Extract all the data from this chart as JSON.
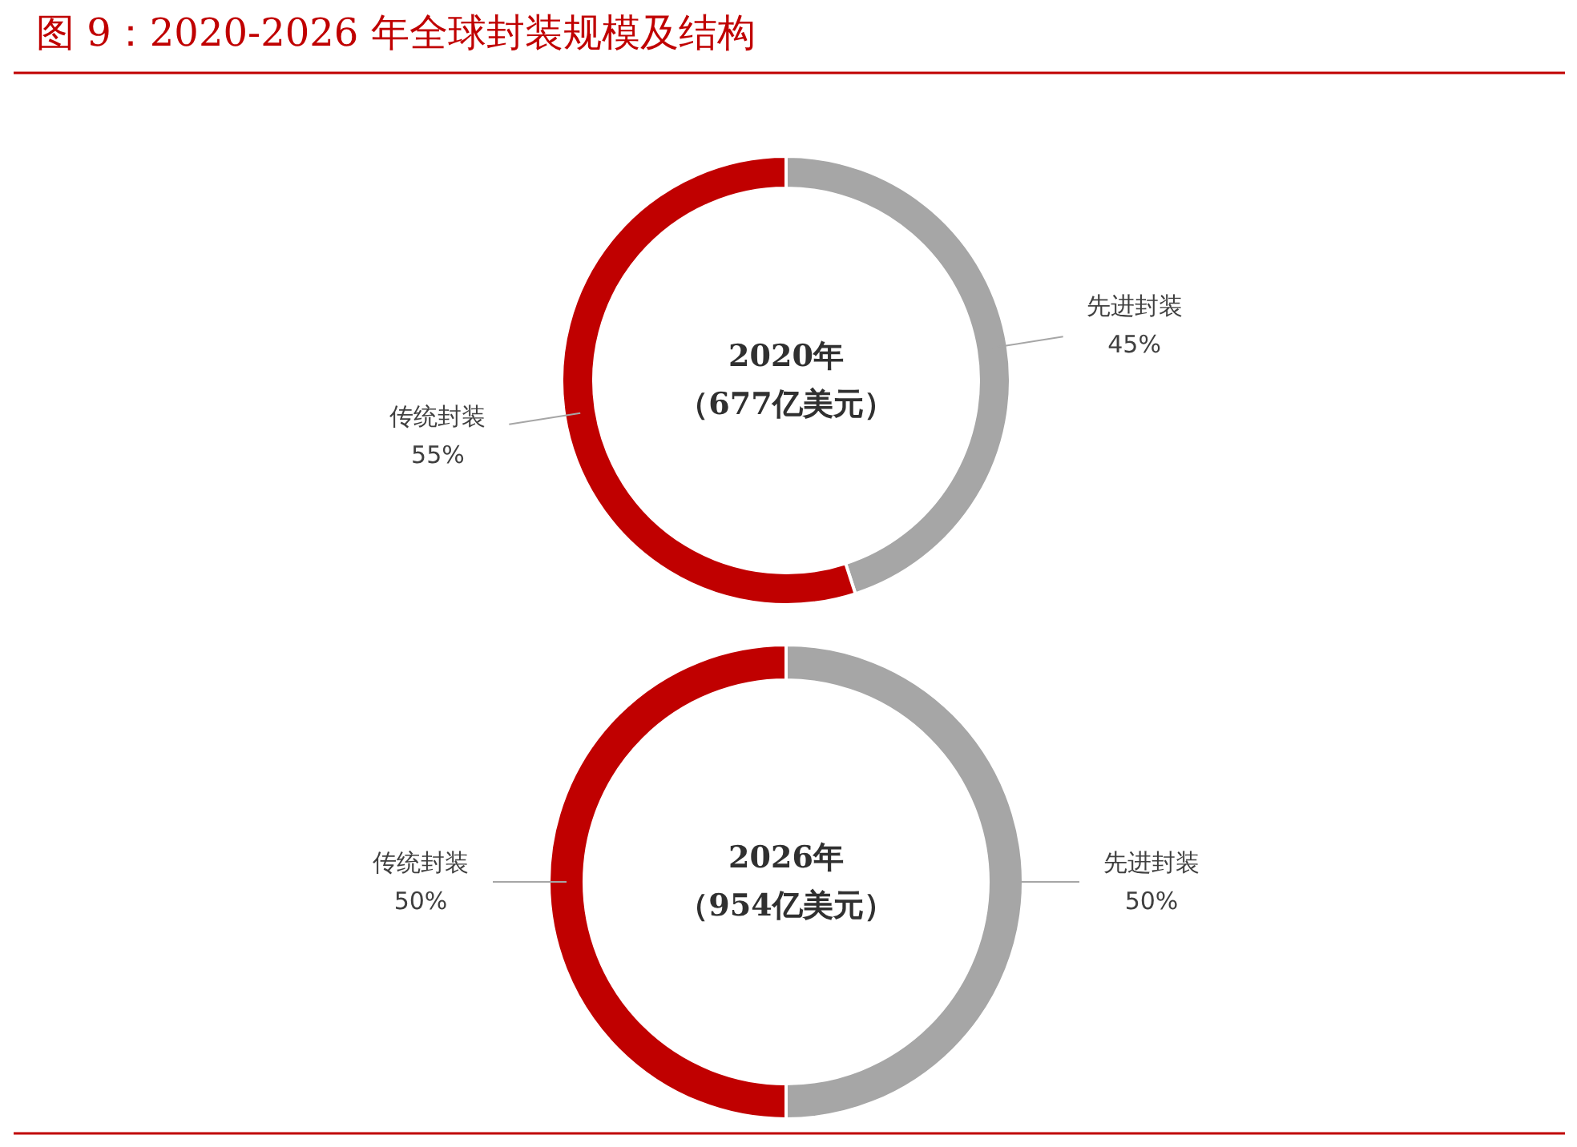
{
  "chart_data": [
    {
      "type": "donut",
      "title": "图 9：2020-2026 年全球封装规模及结构",
      "categories": [
        "先进封装",
        "传统封装"
      ],
      "values": [
        45,
        55
      ],
      "colors": [
        "#a6a6a6",
        "#c00000"
      ],
      "value_labels": [
        "45%",
        "55%"
      ],
      "annotations": [
        "2020年",
        "（677亿美元）"
      ]
    },
    {
      "type": "donut",
      "categories": [
        "先进封装",
        "传统封装"
      ],
      "values": [
        50,
        50
      ],
      "colors": [
        "#a6a6a6",
        "#c00000"
      ],
      "value_labels": [
        "50%",
        "50%"
      ],
      "annotations": [
        "2026年",
        "（954亿美元）"
      ]
    }
  ]
}
